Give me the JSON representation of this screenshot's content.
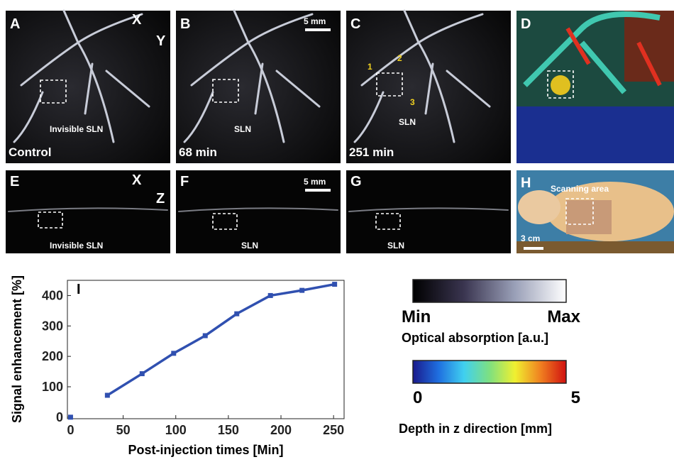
{
  "panels": {
    "a": {
      "label": "A",
      "caption": "Control",
      "note": "Invisible SLN",
      "axis_h": "X",
      "axis_v": "Y"
    },
    "b": {
      "label": "B",
      "caption": "68 min",
      "note": "SLN",
      "scale": "5 mm"
    },
    "c": {
      "label": "C",
      "caption": "251 min",
      "note": "SLN",
      "points": [
        "1",
        "2",
        "3"
      ]
    },
    "d": {
      "label": "D"
    },
    "e": {
      "label": "E",
      "note": "Invisible SLN",
      "axis_h": "X",
      "axis_v": "Z"
    },
    "f": {
      "label": "F",
      "note": "SLN",
      "scale": "5 mm"
    },
    "g": {
      "label": "G",
      "note": "SLN"
    },
    "h": {
      "label": "H",
      "note": "Scanning area",
      "scale": "3 cm"
    }
  },
  "colorbars": [
    {
      "min_label": "Min",
      "max_label": "Max",
      "title": "Optical absorption [a.u.]",
      "colors": [
        "#000000",
        "#3a3550",
        "#9aa0b8",
        "#ffffff"
      ]
    },
    {
      "min_label": "0",
      "max_label": "5",
      "title": "Depth in z direction [mm]",
      "colors": [
        "#1a1a8c",
        "#1f6fe0",
        "#40d0f0",
        "#7ee080",
        "#f0f030",
        "#f08020",
        "#d01010"
      ]
    }
  ],
  "chart_data": {
    "type": "line",
    "label": "I",
    "xlabel": "Post-injection times [Min]",
    "ylabel": "Signal enhancement [%]",
    "series": [
      {
        "color": "#3050b0",
        "x": [
          0
        ],
        "values": [
          0
        ]
      },
      {
        "color": "#3050b0",
        "x": [
          35,
          68,
          98,
          128,
          158,
          190,
          220,
          251
        ],
        "values": [
          72,
          143,
          210,
          268,
          340,
          400,
          417,
          437
        ]
      }
    ],
    "xlim": [
      -3,
      260
    ],
    "ylim": [
      -5,
      450
    ],
    "xticks": [
      0,
      50,
      100,
      150,
      200,
      250
    ],
    "yticks": [
      0,
      100,
      200,
      300,
      400
    ]
  }
}
